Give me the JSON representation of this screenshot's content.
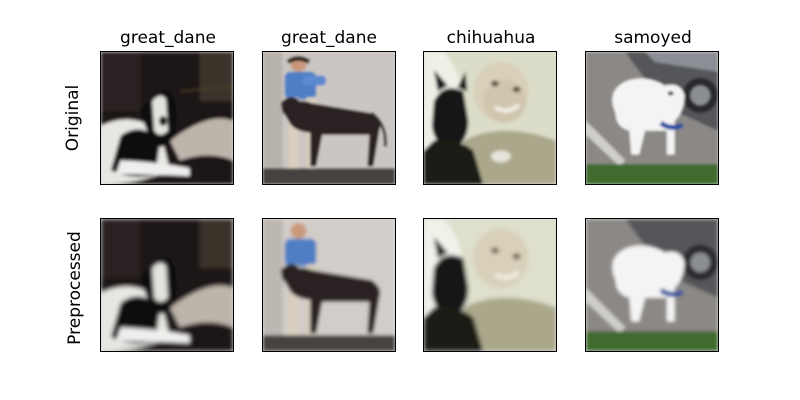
{
  "columns": [
    {
      "label": "great_dane",
      "subject": "black and white great dane lying on a dark floor"
    },
    {
      "label": "great_dane",
      "subject": "man in blue shirt standing behind a dark great dane"
    },
    {
      "label": "chihuahua",
      "subject": "smiling child holding a black chihuahua"
    },
    {
      "label": "samoyed",
      "subject": "white samoyed on pavement near a parked car and grass"
    }
  ],
  "rows": [
    {
      "label": "Original"
    },
    {
      "label": "Preprocessed"
    }
  ]
}
